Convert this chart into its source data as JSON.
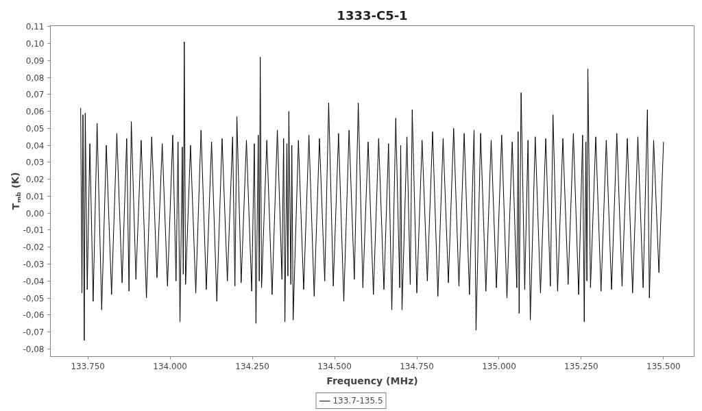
{
  "chart_data": {
    "type": "line",
    "title": "1333-C5-1",
    "xlabel": "Frequency (MHz)",
    "ylabel": "T$_{mb}$ (K)",
    "legend": "bottom",
    "xlim": [
      133636,
      135593
    ],
    "ylim": [
      -0.0845,
      0.1105
    ],
    "xticks": [
      {
        "value": 133750,
        "label": "133.750"
      },
      {
        "value": 134000,
        "label": "134.000"
      },
      {
        "value": 134250,
        "label": "134.250"
      },
      {
        "value": 134500,
        "label": "134.500"
      },
      {
        "value": 134750,
        "label": "134.750"
      },
      {
        "value": 135000,
        "label": "135.000"
      },
      {
        "value": 135250,
        "label": "135.250"
      },
      {
        "value": 135500,
        "label": "135.500"
      }
    ],
    "yticks": [
      {
        "value": -0.08,
        "label": "-0,08"
      },
      {
        "value": -0.07,
        "label": "-0,07"
      },
      {
        "value": -0.06,
        "label": "-0,06"
      },
      {
        "value": -0.05,
        "label": "-0,05"
      },
      {
        "value": -0.04,
        "label": "-0,04"
      },
      {
        "value": -0.03,
        "label": "-0,03"
      },
      {
        "value": -0.02,
        "label": "-0,02"
      },
      {
        "value": -0.01,
        "label": "-0,01"
      },
      {
        "value": 0,
        "label": "0,00"
      },
      {
        "value": 0.01,
        "label": "0,01"
      },
      {
        "value": 0.02,
        "label": "0,02"
      },
      {
        "value": 0.03,
        "label": "0,03"
      },
      {
        "value": 0.04,
        "label": "0,04"
      },
      {
        "value": 0.05,
        "label": "0,05"
      },
      {
        "value": 0.06,
        "label": "0,06"
      },
      {
        "value": 0.07,
        "label": "0,07"
      },
      {
        "value": 0.08,
        "label": "0,08"
      },
      {
        "value": 0.09,
        "label": "0,09"
      },
      {
        "value": 0.1,
        "label": "0,10"
      },
      {
        "value": 0.11,
        "label": "0,11"
      }
    ],
    "x": [
      133728,
      133732,
      133735,
      133739,
      133742,
      133748,
      133756,
      133766,
      133778,
      133792,
      133806,
      133822,
      133838,
      133854,
      133868,
      133875,
      133882,
      133896,
      133912,
      133928,
      133944,
      133960,
      133976,
      133992,
      134008,
      134018,
      134024,
      134030,
      134037,
      134040,
      134043,
      134047,
      134062,
      134078,
      134094,
      134110,
      134126,
      134142,
      134158,
      134174,
      134190,
      134197,
      134203,
      134216,
      134232,
      134248,
      134256,
      134261,
      134268,
      134271,
      134274,
      134278,
      134294,
      134310,
      134326,
      134340,
      134345,
      134349,
      134355,
      134358,
      134361,
      134367,
      134370,
      134374,
      134390,
      134406,
      134422,
      134438,
      134454,
      134470,
      134482,
      134496,
      134512,
      134528,
      134544,
      134560,
      134572,
      134586,
      134602,
      134618,
      134634,
      134650,
      134664,
      134674,
      134686,
      134698,
      134701,
      134705,
      134720,
      134730,
      134736,
      134750,
      134766,
      134782,
      134798,
      134814,
      134830,
      134846,
      134862,
      134878,
      134894,
      134910,
      134924,
      134930,
      134944,
      134960,
      134976,
      134992,
      135008,
      135024,
      135040,
      135054,
      135058,
      135061,
      135067,
      135078,
      135088,
      135095,
      135110,
      135126,
      135142,
      135156,
      135164,
      135178,
      135194,
      135210,
      135226,
      135242,
      135254,
      135259,
      135264,
      135267,
      135270,
      135278,
      135294,
      135310,
      135326,
      135342,
      135358,
      135374,
      135390,
      135406,
      135422,
      135438,
      135451,
      135457,
      135470,
      135486,
      135500
    ],
    "series": [
      {
        "name": "133.7-135.5",
        "color": "#000000",
        "values": [
          0.062,
          -0.047,
          0.058,
          -0.075,
          0.059,
          -0.045,
          0.041,
          -0.052,
          0.053,
          -0.057,
          0.04,
          -0.048,
          0.047,
          -0.041,
          0.044,
          -0.046,
          0.054,
          -0.039,
          0.043,
          -0.05,
          0.045,
          -0.038,
          0.041,
          -0.043,
          0.046,
          -0.04,
          0.042,
          -0.064,
          0.039,
          -0.036,
          0.101,
          -0.042,
          0.04,
          -0.047,
          0.049,
          -0.045,
          0.042,
          -0.052,
          0.044,
          -0.04,
          0.045,
          -0.043,
          0.057,
          -0.041,
          0.043,
          -0.046,
          0.041,
          -0.065,
          0.046,
          -0.04,
          0.092,
          -0.044,
          0.043,
          -0.048,
          0.049,
          -0.039,
          0.044,
          -0.064,
          0.041,
          -0.037,
          0.06,
          -0.042,
          0.04,
          -0.063,
          0.043,
          -0.045,
          0.046,
          -0.049,
          0.044,
          -0.04,
          0.065,
          -0.043,
          0.047,
          -0.052,
          0.049,
          -0.039,
          0.065,
          -0.044,
          0.042,
          -0.048,
          0.044,
          -0.045,
          0.041,
          -0.057,
          0.056,
          -0.044,
          0.04,
          -0.057,
          0.045,
          -0.042,
          0.061,
          -0.047,
          0.043,
          -0.04,
          0.048,
          -0.049,
          0.044,
          -0.041,
          0.05,
          -0.043,
          0.047,
          -0.048,
          0.049,
          -0.069,
          0.047,
          -0.046,
          0.043,
          -0.044,
          0.046,
          -0.05,
          0.042,
          -0.044,
          0.048,
          -0.059,
          0.071,
          -0.045,
          0.043,
          -0.063,
          0.045,
          -0.047,
          0.044,
          -0.043,
          0.058,
          -0.046,
          0.044,
          -0.042,
          0.047,
          -0.048,
          0.046,
          -0.064,
          0.042,
          -0.04,
          0.085,
          -0.044,
          0.045,
          -0.046,
          0.043,
          -0.045,
          0.047,
          -0.043,
          0.044,
          -0.047,
          0.045,
          -0.044,
          0.061,
          -0.05,
          0.043,
          -0.035,
          0.042
        ]
      }
    ]
  }
}
